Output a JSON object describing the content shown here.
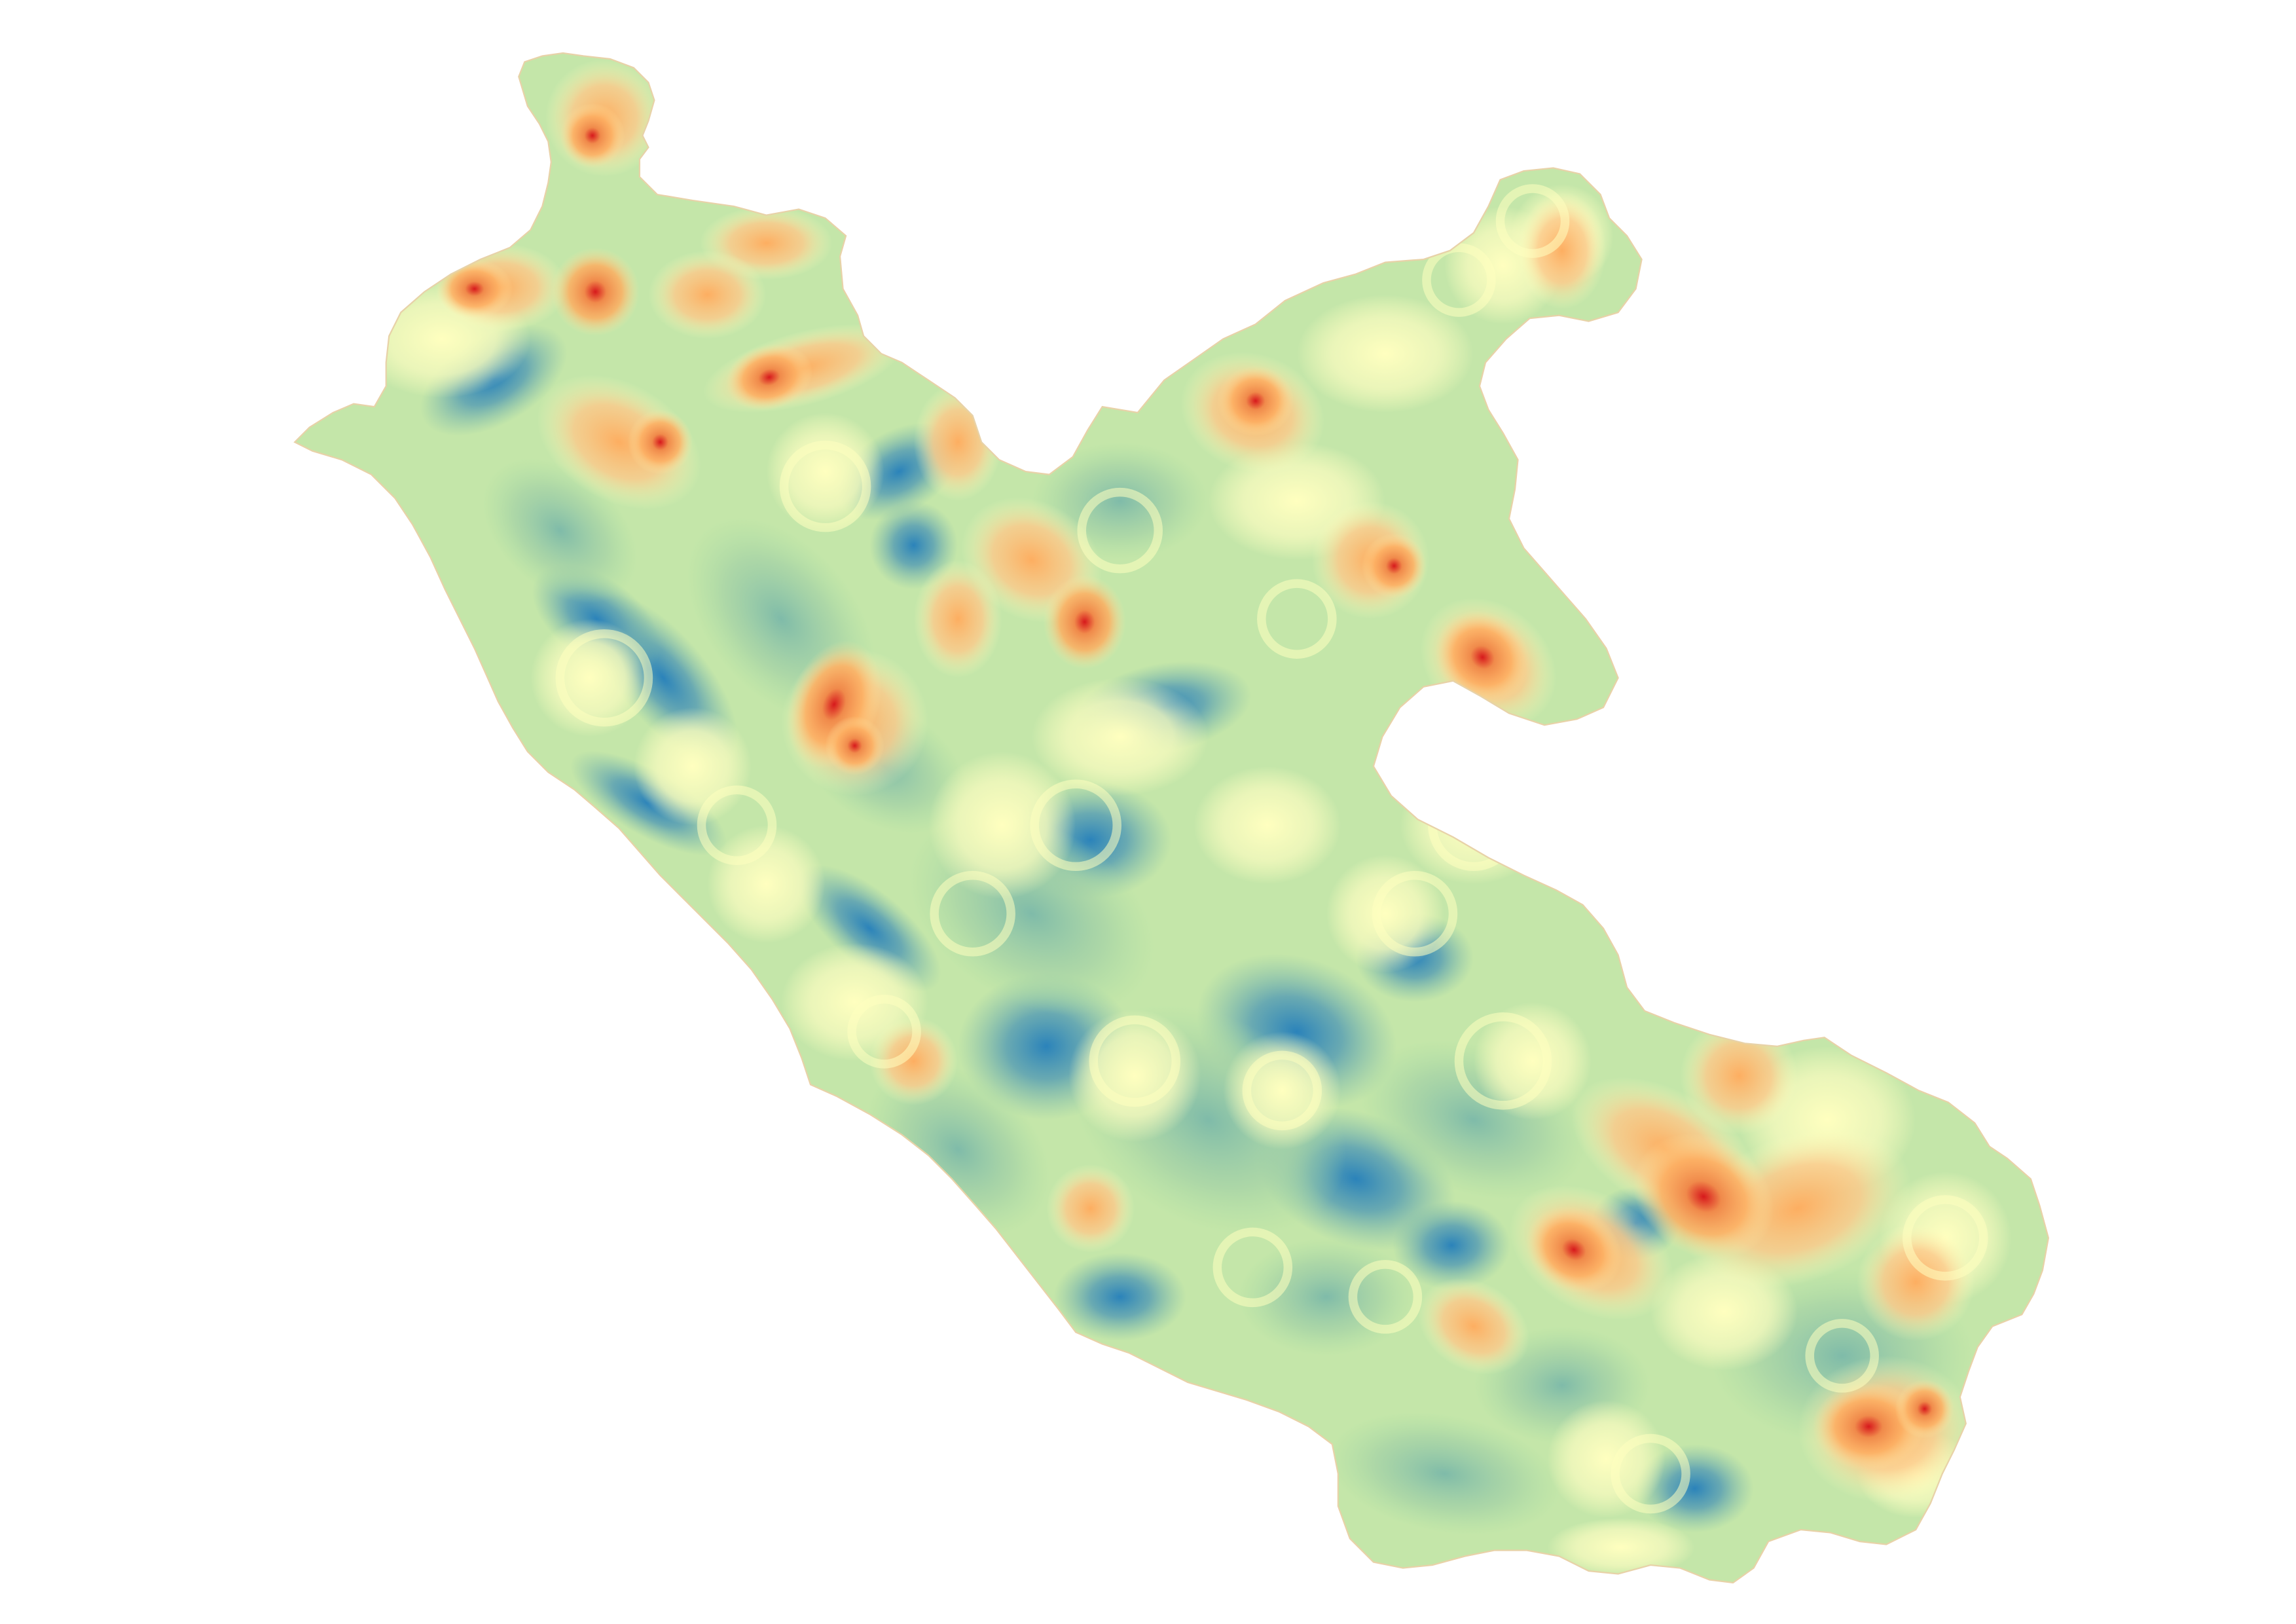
{
  "map": {
    "type": "heatmap",
    "style": "kernel-density raster clipped to a regional boundary",
    "palette": {
      "very_high": "#d7191c",
      "high": "#f08a4b",
      "moderately_high": "#fdae61",
      "medium": "#fee8a4",
      "pale": "#ffffbf",
      "moderately_low": "#c4e6a9",
      "low": "#abdda4",
      "lower": "#7fbba9",
      "very_low": "#2b83ba"
    },
    "background": "#ffffff"
  }
}
